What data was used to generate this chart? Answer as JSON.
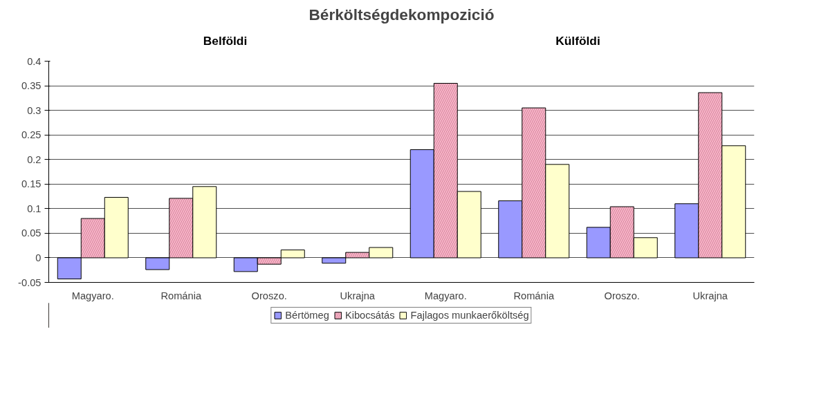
{
  "chart_data": {
    "type": "bar",
    "title": "Bérköltségdekompozició",
    "annotations": [
      "Belföldi",
      "Külföldi"
    ],
    "categories": [
      "Magyaro.",
      "Románia",
      "Oroszo.",
      "Ukrajna",
      "Magyaro.",
      "Románia",
      "Oroszo.",
      "Ukrajna"
    ],
    "series": [
      {
        "name": "Bértömeg",
        "color": "#9999ff",
        "values": [
          -0.043,
          -0.024,
          -0.028,
          -0.011,
          0.22,
          0.116,
          0.062,
          0.11
        ]
      },
      {
        "name": "Kibocsátás",
        "color": "#f7b6c8",
        "values": [
          0.08,
          0.121,
          -0.013,
          0.011,
          0.355,
          0.305,
          0.104,
          0.336
        ]
      },
      {
        "name": "Fajlagos munkaerőköltség",
        "color": "#ffffcc",
        "values": [
          0.123,
          0.145,
          0.016,
          0.021,
          0.135,
          0.19,
          0.041,
          0.228
        ]
      }
    ],
    "ylim": [
      -0.05,
      0.4
    ],
    "yticks": [
      -0.05,
      0,
      0.05,
      0.1,
      0.15,
      0.2,
      0.25,
      0.3,
      0.35,
      0.4
    ],
    "grid": "y",
    "legend": "bottom"
  }
}
